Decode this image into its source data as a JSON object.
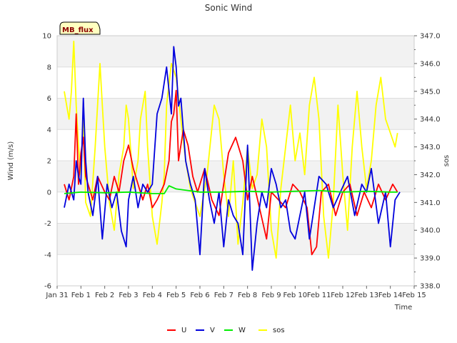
{
  "chart_data": {
    "type": "line",
    "title": "Sonic Wind",
    "badge": "MB_flux",
    "xlabel": "Time",
    "ylabel": "Wind (m/s)",
    "y2label": "sos",
    "xlim": [
      0,
      15
    ],
    "ylim": [
      -6,
      10
    ],
    "y2lim": [
      338,
      347
    ],
    "x_ticks": [
      0,
      1,
      2,
      3,
      4,
      5,
      6,
      7,
      8,
      9,
      10,
      11,
      12,
      13,
      14,
      15
    ],
    "x_tick_labels": [
      "Jan 31",
      "Feb 1",
      "Feb 2",
      "Feb 3",
      "Feb 4",
      "Feb 5",
      "Feb 6",
      "Feb 7",
      "Feb 8",
      "Feb 9",
      "Feb 10",
      "Feb 11",
      "Feb 12",
      "Feb 13",
      "Feb 14",
      "Feb 15"
    ],
    "y_ticks": [
      -6,
      -4,
      -2,
      0,
      2,
      4,
      6,
      8,
      10
    ],
    "y_tick_labels": [
      "-6",
      "-4",
      "-2",
      "0",
      "2",
      "4",
      "6",
      "8",
      "10"
    ],
    "y2_ticks": [
      338,
      339,
      340,
      341,
      342,
      343,
      344,
      345,
      346,
      347
    ],
    "y2_tick_labels": [
      "338.0",
      "339.0",
      "340.0",
      "341.0",
      "342.0",
      "343.0",
      "344.0",
      "345.0",
      "346.0",
      "347.0"
    ],
    "grid": true,
    "legend_position": "bottom",
    "series": [
      {
        "name": "U",
        "color": "#ff0000",
        "axis": "left",
        "x": [
          0.3,
          0.5,
          0.7,
          0.8,
          0.9,
          1.0,
          1.1,
          1.2,
          1.3,
          1.5,
          1.7,
          2.0,
          2.2,
          2.4,
          2.6,
          2.8,
          3.0,
          3.2,
          3.4,
          3.6,
          3.8,
          4.0,
          4.2,
          4.5,
          4.7,
          4.8,
          4.9,
          5.0,
          5.1,
          5.3,
          5.5,
          5.7,
          5.9,
          6.2,
          6.5,
          6.8,
          7.0,
          7.2,
          7.5,
          7.8,
          8.0,
          8.2,
          8.5,
          8.8,
          9.0,
          9.3,
          9.6,
          9.9,
          10.2,
          10.5,
          10.7,
          10.9,
          11.1,
          11.4,
          11.7,
          12.0,
          12.3,
          12.6,
          12.9,
          13.2,
          13.5,
          13.8,
          14.1,
          14.3
        ],
        "values": [
          0.5,
          -0.5,
          1.0,
          5.0,
          0.5,
          2.5,
          3.5,
          1.0,
          0.5,
          -0.5,
          1.0,
          0.0,
          -0.5,
          1.0,
          0.0,
          2.0,
          3.0,
          1.5,
          0.5,
          -0.5,
          0.5,
          -1.0,
          -0.5,
          0.5,
          2.0,
          4.5,
          5.0,
          6.5,
          2.0,
          4.0,
          3.0,
          1.0,
          0.0,
          1.5,
          -0.5,
          -1.5,
          0.5,
          2.5,
          3.5,
          2.0,
          -0.5,
          1.0,
          -1.0,
          -3.0,
          0.0,
          -0.5,
          -1.0,
          0.5,
          0.0,
          -1.0,
          -4.0,
          -3.5,
          0.0,
          0.5,
          -1.5,
          0.0,
          0.5,
          -1.5,
          0.0,
          -1.0,
          0.5,
          -0.5,
          0.5,
          0.0
        ]
      },
      {
        "name": "V",
        "color": "#0000dd",
        "axis": "left",
        "x": [
          0.3,
          0.5,
          0.7,
          0.8,
          0.9,
          1.0,
          1.1,
          1.2,
          1.3,
          1.5,
          1.7,
          1.9,
          2.1,
          2.3,
          2.5,
          2.7,
          2.9,
          3.0,
          3.2,
          3.4,
          3.6,
          3.8,
          4.0,
          4.2,
          4.4,
          4.6,
          4.8,
          4.9,
          5.0,
          5.1,
          5.2,
          5.4,
          5.6,
          5.8,
          6.0,
          6.2,
          6.4,
          6.6,
          6.8,
          7.0,
          7.2,
          7.4,
          7.6,
          7.8,
          8.0,
          8.2,
          8.4,
          8.6,
          8.8,
          9.0,
          9.2,
          9.4,
          9.6,
          9.8,
          10.0,
          10.2,
          10.4,
          10.6,
          10.8,
          11.0,
          11.3,
          11.6,
          11.9,
          12.2,
          12.5,
          12.8,
          13.0,
          13.2,
          13.5,
          13.8,
          14.0,
          14.2,
          14.4
        ],
        "values": [
          -1.0,
          0.5,
          -0.5,
          2.0,
          1.0,
          0.5,
          6.0,
          2.0,
          0.0,
          -1.5,
          1.0,
          -3.0,
          0.5,
          -1.0,
          0.0,
          -2.5,
          -3.5,
          -0.5,
          1.0,
          -1.0,
          0.5,
          0.0,
          0.5,
          5.0,
          6.0,
          8.0,
          5.0,
          9.3,
          8.0,
          5.5,
          6.0,
          2.0,
          0.5,
          -0.5,
          -4.0,
          1.5,
          -0.5,
          -2.0,
          0.0,
          -3.5,
          -0.5,
          -1.5,
          -2.0,
          -4.0,
          3.0,
          -5.0,
          -2.0,
          0.0,
          -1.0,
          1.5,
          0.5,
          -1.0,
          -0.5,
          -2.5,
          -3.0,
          -1.5,
          0.0,
          -3.0,
          -1.0,
          1.0,
          0.5,
          -1.0,
          0.0,
          1.0,
          -1.5,
          0.5,
          0.0,
          1.5,
          -2.0,
          0.0,
          -3.5,
          -0.5,
          0.0
        ]
      },
      {
        "name": "W",
        "color": "#00ee00",
        "axis": "left",
        "x": [
          0.3,
          1.0,
          2.0,
          3.0,
          4.0,
          4.5,
          4.7,
          5.0,
          5.5,
          6.0,
          7.0,
          8.0,
          9.0,
          10.0,
          11.0,
          12.0,
          13.0,
          14.0,
          14.3
        ],
        "values": [
          -0.1,
          0.0,
          -0.05,
          0.0,
          -0.1,
          -0.1,
          0.4,
          0.2,
          0.1,
          0.0,
          0.0,
          0.05,
          0.0,
          0.05,
          0.1,
          0.0,
          0.05,
          0.0,
          0.0
        ]
      },
      {
        "name": "sos",
        "color": "#ffff00",
        "axis": "right",
        "x": [
          0.3,
          0.4,
          0.5,
          0.6,
          0.7,
          0.8,
          0.9,
          1.0,
          1.1,
          1.2,
          1.4,
          1.6,
          1.8,
          1.9,
          2.0,
          2.1,
          2.2,
          2.4,
          2.6,
          2.8,
          2.9,
          3.0,
          3.2,
          3.4,
          3.5,
          3.7,
          3.8,
          4.0,
          4.2,
          4.4,
          4.5,
          4.6,
          4.8,
          5.0,
          5.2,
          5.4,
          5.6,
          5.8,
          6.0,
          6.3,
          6.6,
          6.8,
          7.0,
          7.2,
          7.4,
          7.6,
          7.8,
          8.0,
          8.2,
          8.4,
          8.6,
          8.8,
          9.0,
          9.2,
          9.4,
          9.6,
          9.8,
          10.0,
          10.2,
          10.4,
          10.6,
          10.8,
          11.0,
          11.2,
          11.4,
          11.6,
          11.8,
          12.0,
          12.2,
          12.4,
          12.6,
          12.8,
          13.0,
          13.2,
          13.4,
          13.6,
          13.8,
          14.0,
          14.2,
          14.3
        ],
        "values": [
          345.0,
          344.5,
          344.0,
          345.0,
          346.8,
          344.5,
          343.0,
          342.0,
          344.0,
          341.0,
          340.5,
          343.0,
          346.0,
          344.5,
          343.0,
          342.0,
          341.0,
          340.0,
          342.0,
          343.0,
          344.5,
          344.0,
          341.5,
          342.5,
          344.0,
          345.0,
          343.0,
          340.5,
          339.5,
          341.0,
          342.0,
          344.5,
          346.0,
          345.5,
          344.0,
          342.5,
          341.5,
          341.0,
          340.5,
          342.0,
          344.5,
          344.0,
          342.0,
          340.5,
          342.5,
          339.5,
          341.0,
          343.0,
          341.5,
          342.0,
          344.0,
          343.0,
          340.0,
          339.0,
          341.5,
          343.0,
          344.5,
          342.5,
          343.5,
          342.0,
          344.5,
          345.5,
          344.0,
          340.5,
          339.0,
          341.0,
          344.5,
          342.0,
          340.0,
          343.0,
          345.0,
          343.0,
          341.5,
          342.5,
          344.5,
          345.5,
          344.0,
          343.5,
          343.0,
          343.5
        ]
      }
    ]
  }
}
